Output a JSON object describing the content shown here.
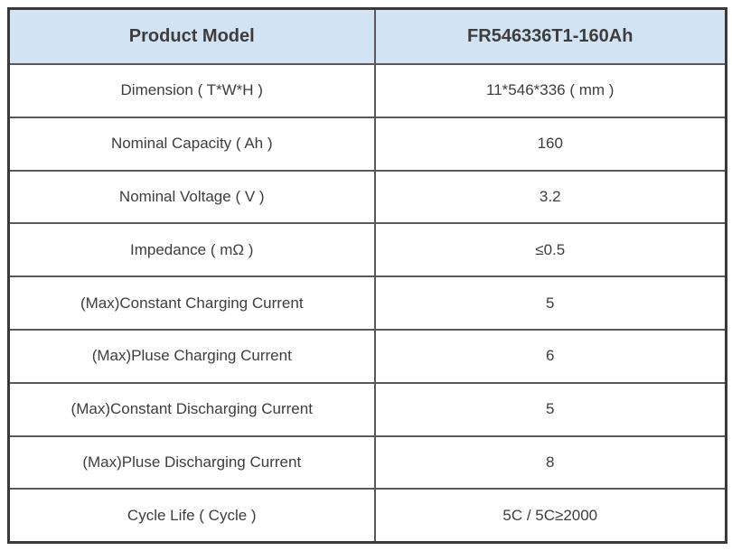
{
  "colors": {
    "page_bg": "#ffffff",
    "header_bg": "#d2e3f3",
    "outer_border": "#3a3a3a",
    "inner_border": "#595959",
    "text": "#3d3d3d"
  },
  "table": {
    "header": {
      "label": "Product Model",
      "value": "FR546336T1-160Ah"
    },
    "rows": [
      {
        "label": "Dimension ( T*W*H )",
        "value": "11*546*336 ( mm )"
      },
      {
        "label": "Nominal Capacity ( Ah )",
        "value": "160"
      },
      {
        "label": "Nominal Voltage ( V )",
        "value": "3.2"
      },
      {
        "label": "Impedance ( mΩ )",
        "value": "≤0.5"
      },
      {
        "label": "(Max)Constant Charging Current",
        "value": "5"
      },
      {
        "label": "(Max)Pluse Charging Current",
        "value": "6"
      },
      {
        "label": "(Max)Constant Discharging Current",
        "value": "5"
      },
      {
        "label": "(Max)Pluse Discharging Current",
        "value": "8"
      },
      {
        "label": "Cycle Life ( Cycle )",
        "value": "5C / 5C≥2000"
      }
    ]
  }
}
